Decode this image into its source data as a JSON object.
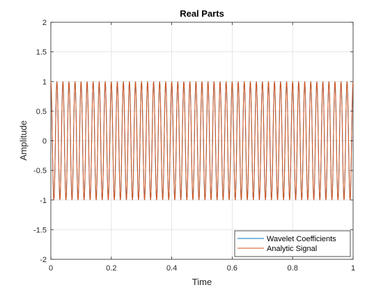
{
  "chart_data": {
    "type": "line",
    "title": "Real Parts",
    "xlabel": "Time",
    "ylabel": "Amplitude",
    "xlim": [
      0,
      1
    ],
    "ylim": [
      -2,
      2
    ],
    "xticks": [
      0,
      0.2,
      0.4,
      0.6,
      0.8,
      1
    ],
    "xtick_labels": [
      "0",
      "0.2",
      "0.4",
      "0.6",
      "0.8",
      "1"
    ],
    "yticks": [
      -2,
      -1.5,
      -1,
      -0.5,
      0,
      0.5,
      1,
      1.5,
      2
    ],
    "ytick_labels": [
      "-2",
      "-1.5",
      "-1",
      "-0.5",
      "0",
      "0.5",
      "1",
      "1.5",
      "2"
    ],
    "grid": true,
    "legend_position": "bottom-right",
    "series": [
      {
        "name": "Wavelet Coefficients",
        "color": "#0072BD",
        "function": "cos",
        "amplitude": 1,
        "frequency": 50,
        "phase": 0,
        "x_range": [
          0,
          1
        ],
        "samples": 1000
      },
      {
        "name": "Analytic Signal",
        "color": "#D95319",
        "function": "cos",
        "amplitude": 1,
        "frequency": 50,
        "phase": 0,
        "x_range": [
          0,
          1
        ],
        "samples": 1000
      }
    ]
  }
}
